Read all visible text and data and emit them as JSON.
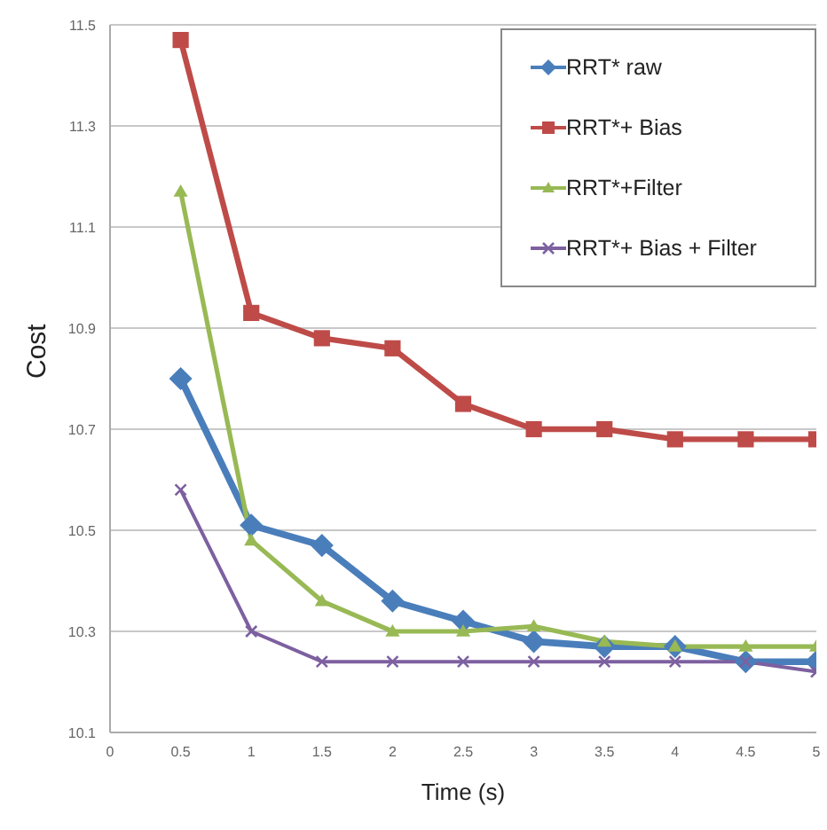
{
  "chart_data": {
    "type": "line",
    "xlabel": "Time (s)",
    "ylabel": "Cost",
    "x": [
      0.5,
      1,
      1.5,
      2,
      2.5,
      3,
      3.5,
      4,
      4.5,
      5
    ],
    "xlim": [
      0,
      5
    ],
    "xticks": [
      0,
      0.5,
      1,
      1.5,
      2,
      2.5,
      3,
      3.5,
      4,
      4.5,
      5
    ],
    "ylim": [
      10.1,
      11.5
    ],
    "yticks": [
      10.1,
      10.3,
      10.5,
      10.7,
      10.9,
      11.1,
      11.3,
      11.5
    ],
    "grid": "y",
    "legend": "top right",
    "line_style": "solid",
    "series": [
      {
        "name": "RRT* raw",
        "color": "#4a7ebb",
        "marker": "diamond",
        "values": [
          10.8,
          10.51,
          10.47,
          10.36,
          10.32,
          10.28,
          10.27,
          10.27,
          10.24,
          10.24
        ]
      },
      {
        "name": "RRT*+ Bias",
        "color": "#be4b48",
        "marker": "square",
        "values": [
          11.47,
          10.93,
          10.88,
          10.86,
          10.75,
          10.7,
          10.7,
          10.68,
          10.68,
          10.68
        ]
      },
      {
        "name": "RRT*+Filter",
        "color": "#98b954",
        "marker": "triangle",
        "values": [
          11.17,
          10.48,
          10.36,
          10.3,
          10.3,
          10.31,
          10.28,
          10.27,
          10.27,
          10.27
        ]
      },
      {
        "name": "RRT*+ Bias + Filter",
        "color": "#7d60a0",
        "marker": "cross",
        "values": [
          10.58,
          10.3,
          10.24,
          10.24,
          10.24,
          10.24,
          10.24,
          10.24,
          10.24,
          10.22
        ]
      }
    ]
  }
}
